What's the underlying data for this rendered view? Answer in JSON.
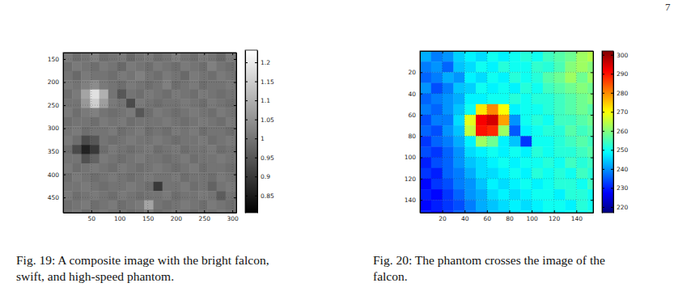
{
  "page_number": "7",
  "chart_data": [
    {
      "type": "heatmap",
      "color": "gray",
      "grid": true,
      "caption": [
        "Fig. 19: A composite image with the bright falcon,",
        "swift, and high-speed phantom."
      ],
      "xlim": [
        0,
        307
      ],
      "ylim": [
        136,
        483
      ],
      "xticks": [
        50,
        100,
        150,
        200,
        250,
        300
      ],
      "yticks": [
        150,
        200,
        250,
        300,
        350,
        400,
        450
      ],
      "colorbar_lim": [
        0.805,
        1.232
      ],
      "colorbar_ticks": [
        0.85,
        0.9,
        0.95,
        1,
        1.05,
        1.1,
        1.15,
        1.2
      ],
      "x": [
        8,
        24,
        40,
        56,
        72,
        88,
        104,
        120,
        136,
        152,
        168,
        184,
        200,
        216,
        232,
        248,
        264,
        280,
        296,
        312
      ],
      "y": [
        146,
        166,
        186,
        206,
        226,
        246,
        266,
        286,
        306,
        326,
        346,
        366,
        386,
        406,
        426,
        446,
        466,
        486
      ],
      "z": [
        [
          1.01,
          0.99,
          1.0,
          1.02,
          0.99,
          1.0,
          1.01,
          0.98,
          1.0,
          1.01,
          0.99,
          1.0,
          1.02,
          1.0,
          0.99,
          1.01,
          1.0,
          0.98,
          1.01,
          1.0
        ],
        [
          0.99,
          1.01,
          1.0,
          0.99,
          1.01,
          1.0,
          0.98,
          1.01,
          1.0,
          0.99,
          1.01,
          1.0,
          0.99,
          1.01,
          1.0,
          0.99,
          1.02,
          1.0,
          0.99,
          1.01
        ],
        [
          1.0,
          0.98,
          1.01,
          1.0,
          1.0,
          0.99,
          1.01,
          1.0,
          1.02,
          1.0,
          0.99,
          1.01,
          1.0,
          0.98,
          1.01,
          1.0,
          0.99,
          1.01,
          1.0,
          0.99
        ],
        [
          1.01,
          1.0,
          1.02,
          1.04,
          1.01,
          1.0,
          0.99,
          1.01,
          1.0,
          0.99,
          1.0,
          1.02,
          0.99,
          1.0,
          1.01,
          0.99,
          1.0,
          1.0,
          1.01,
          1.0
        ],
        [
          0.99,
          1.01,
          1.08,
          1.18,
          1.1,
          1.0,
          0.95,
          1.0,
          0.99,
          1.01,
          1.0,
          0.99,
          1.01,
          1.0,
          0.99,
          1.01,
          1.0,
          0.99,
          1.0,
          1.01
        ],
        [
          1.0,
          1.0,
          1.06,
          1.15,
          1.07,
          1.01,
          1.0,
          0.93,
          1.01,
          1.0,
          0.99,
          1.0,
          1.0,
          1.01,
          1.0,
          0.99,
          1.01,
          1.0,
          0.99,
          1.0
        ],
        [
          1.01,
          0.99,
          1.01,
          1.02,
          1.0,
          0.99,
          1.0,
          1.01,
          0.95,
          0.99,
          1.01,
          1.0,
          0.99,
          1.0,
          1.01,
          1.0,
          0.99,
          1.01,
          1.0,
          0.99
        ],
        [
          0.99,
          1.0,
          1.0,
          0.99,
          1.01,
          1.0,
          1.01,
          0.99,
          1.0,
          1.0,
          1.0,
          1.01,
          1.0,
          0.99,
          1.0,
          1.01,
          1.0,
          0.99,
          1.01,
          1.0
        ],
        [
          1.0,
          1.01,
          0.99,
          1.0,
          1.0,
          1.01,
          0.99,
          1.0,
          1.01,
          0.99,
          1.0,
          0.99,
          1.01,
          1.0,
          1.01,
          0.99,
          1.0,
          1.0,
          0.99,
          1.01
        ],
        [
          1.01,
          0.99,
          0.93,
          0.95,
          1.0,
          0.99,
          1.0,
          1.01,
          1.0,
          1.0,
          1.01,
          1.0,
          0.99,
          1.0,
          1.0,
          1.01,
          0.99,
          1.0,
          1.01,
          1.0
        ],
        [
          0.99,
          0.93,
          0.86,
          0.9,
          0.99,
          1.01,
          1.0,
          0.99,
          1.0,
          1.01,
          0.99,
          1.0,
          1.01,
          0.99,
          1.0,
          1.0,
          1.01,
          0.99,
          1.0,
          0.99
        ],
        [
          1.0,
          1.0,
          0.94,
          0.97,
          1.01,
          1.0,
          0.99,
          1.0,
          1.01,
          1.0,
          1.0,
          0.99,
          1.0,
          1.01,
          0.99,
          1.0,
          1.0,
          1.01,
          1.0,
          1.01
        ],
        [
          1.01,
          0.99,
          1.0,
          1.01,
          1.0,
          0.99,
          1.01,
          1.0,
          0.99,
          1.0,
          1.01,
          1.0,
          0.99,
          1.0,
          1.01,
          0.99,
          1.0,
          1.0,
          0.99,
          1.0
        ],
        [
          0.99,
          1.01,
          1.0,
          0.99,
          1.0,
          1.01,
          1.0,
          0.99,
          1.0,
          1.01,
          1.0,
          1.0,
          1.01,
          0.99,
          1.0,
          1.0,
          0.99,
          1.01,
          1.0,
          0.99
        ],
        [
          1.0,
          1.0,
          1.01,
          1.0,
          0.99,
          1.0,
          1.0,
          1.01,
          1.0,
          0.99,
          0.9,
          1.0,
          1.0,
          1.01,
          0.99,
          1.0,
          0.97,
          1.0,
          1.01,
          1.0
        ],
        [
          1.01,
          0.99,
          1.0,
          1.01,
          1.0,
          0.99,
          1.01,
          1.0,
          0.99,
          1.0,
          1.0,
          1.01,
          0.99,
          1.0,
          1.0,
          1.01,
          1.0,
          0.96,
          1.0,
          0.99
        ],
        [
          0.99,
          1.0,
          1.01,
          0.99,
          1.0,
          1.01,
          0.99,
          1.0,
          1.01,
          1.08,
          1.0,
          0.99,
          1.0,
          1.01,
          1.0,
          0.99,
          1.01,
          1.0,
          0.99,
          1.01
        ],
        [
          1.0,
          1.01,
          0.99,
          1.0,
          1.01,
          1.0,
          1.0,
          0.99,
          1.0,
          1.02,
          0.99,
          1.0,
          1.01,
          1.0,
          0.99,
          1.0,
          1.0,
          1.01,
          1.0,
          1.0
        ]
      ]
    },
    {
      "type": "heatmap",
      "color": "jet",
      "grid": true,
      "caption": [
        "Fig. 20: The phantom crosses the image of the",
        "falcon."
      ],
      "xlim": [
        0,
        155
      ],
      "ylim": [
        0,
        152
      ],
      "xticks": [
        20,
        40,
        60,
        80,
        100,
        120,
        140
      ],
      "yticks": [
        20,
        40,
        60,
        80,
        100,
        120,
        140
      ],
      "colorbar_lim": [
        217,
        302
      ],
      "colorbar_ticks": [
        220,
        230,
        240,
        250,
        260,
        270,
        280,
        290,
        300
      ],
      "x": [
        5,
        15,
        25,
        35,
        45,
        55,
        65,
        75,
        85,
        95,
        105,
        115,
        125,
        135,
        145,
        155
      ],
      "y": [
        5,
        15,
        25,
        35,
        45,
        55,
        65,
        75,
        85,
        95,
        105,
        115,
        125,
        135,
        145,
        155
      ],
      "z": [
        [
          242,
          238,
          240,
          245,
          248,
          246,
          250,
          248,
          250,
          252,
          250,
          254,
          256,
          258,
          262,
          264
        ],
        [
          238,
          240,
          236,
          244,
          246,
          250,
          248,
          252,
          250,
          250,
          253,
          252,
          255,
          260,
          262,
          260
        ],
        [
          236,
          238,
          242,
          240,
          248,
          246,
          250,
          248,
          252,
          250,
          252,
          256,
          258,
          262,
          258,
          262
        ],
        [
          240,
          234,
          238,
          244,
          245,
          250,
          248,
          250,
          248,
          252,
          250,
          254,
          256,
          258,
          260,
          258
        ],
        [
          236,
          238,
          240,
          242,
          248,
          248,
          250,
          250,
          252,
          250,
          252,
          252,
          254,
          256,
          258,
          260
        ],
        [
          238,
          236,
          240,
          244,
          250,
          272,
          280,
          270,
          248,
          250,
          250,
          252,
          254,
          256,
          258,
          256
        ],
        [
          234,
          238,
          238,
          246,
          268,
          292,
          295,
          278,
          240,
          250,
          252,
          250,
          254,
          254,
          256,
          258
        ],
        [
          236,
          234,
          240,
          244,
          265,
          290,
          288,
          262,
          235,
          248,
          250,
          252,
          252,
          256,
          254,
          256
        ],
        [
          232,
          236,
          238,
          242,
          248,
          262,
          258,
          248,
          244,
          232,
          250,
          250,
          252,
          254,
          256,
          254
        ],
        [
          234,
          232,
          236,
          240,
          246,
          248,
          250,
          248,
          250,
          248,
          252,
          250,
          252,
          252,
          254,
          256
        ],
        [
          230,
          234,
          236,
          240,
          244,
          246,
          248,
          250,
          248,
          250,
          250,
          252,
          250,
          254,
          252,
          254
        ],
        [
          232,
          230,
          236,
          238,
          242,
          246,
          246,
          248,
          250,
          248,
          252,
          250,
          252,
          250,
          254,
          252
        ],
        [
          228,
          232,
          234,
          238,
          240,
          244,
          248,
          246,
          248,
          250,
          248,
          250,
          252,
          252,
          250,
          254
        ],
        [
          230,
          228,
          232,
          236,
          240,
          242,
          246,
          248,
          246,
          248,
          250,
          250,
          248,
          252,
          252,
          250
        ],
        [
          228,
          230,
          232,
          234,
          238,
          242,
          244,
          246,
          248,
          246,
          248,
          250,
          250,
          248,
          252,
          250
        ],
        [
          230,
          228,
          232,
          236,
          238,
          240,
          244,
          244,
          246,
          248,
          246,
          250,
          248,
          250,
          250,
          252
        ]
      ]
    }
  ]
}
